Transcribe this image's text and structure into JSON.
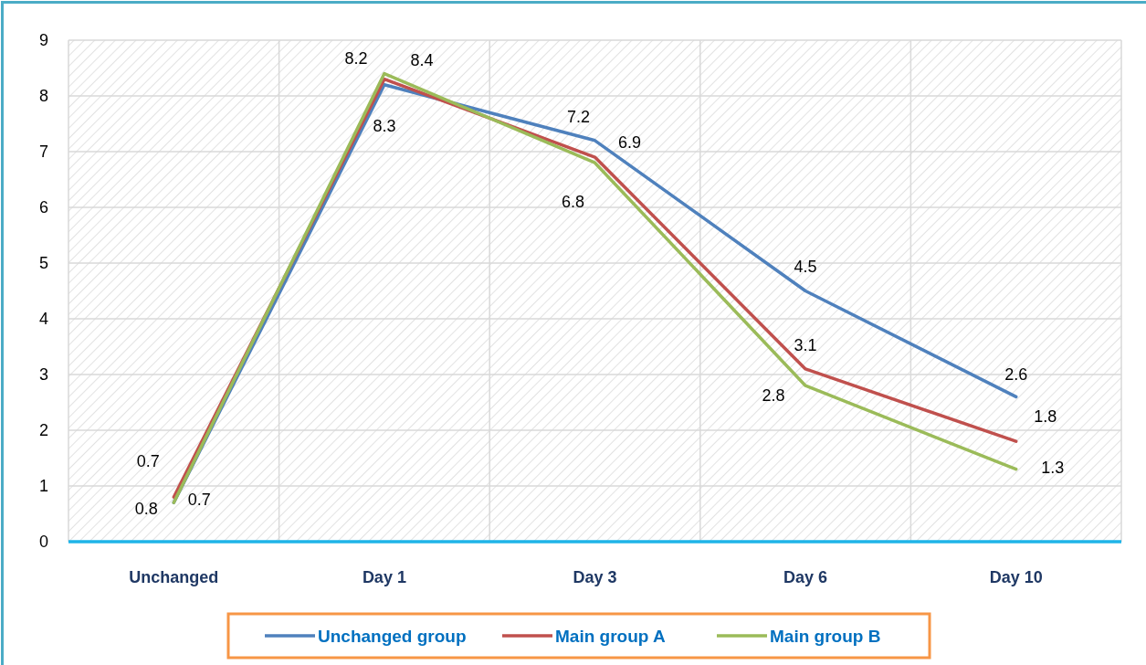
{
  "chart_data": {
    "type": "line",
    "categories": [
      "Unchanged",
      "Day 1",
      "Day 3",
      "Day 6",
      "Day 10"
    ],
    "series": [
      {
        "name": "Unchanged group",
        "color": "#4f81bd",
        "values": [
          0.7,
          8.2,
          7.2,
          4.5,
          2.6
        ]
      },
      {
        "name": "Main group A",
        "color": "#c0504d",
        "values": [
          0.8,
          8.3,
          6.9,
          3.1,
          1.8
        ]
      },
      {
        "name": "Main group B",
        "color": "#9bbb59",
        "values": [
          0.7,
          8.4,
          6.8,
          2.8,
          1.3
        ]
      }
    ],
    "ylim": [
      0,
      9
    ],
    "yticks": [
      0,
      1,
      2,
      3,
      4,
      5,
      6,
      7,
      8,
      9
    ],
    "grid": true,
    "legend": "bottom",
    "data_labels": true,
    "marker": "none",
    "line_style": "solid"
  }
}
